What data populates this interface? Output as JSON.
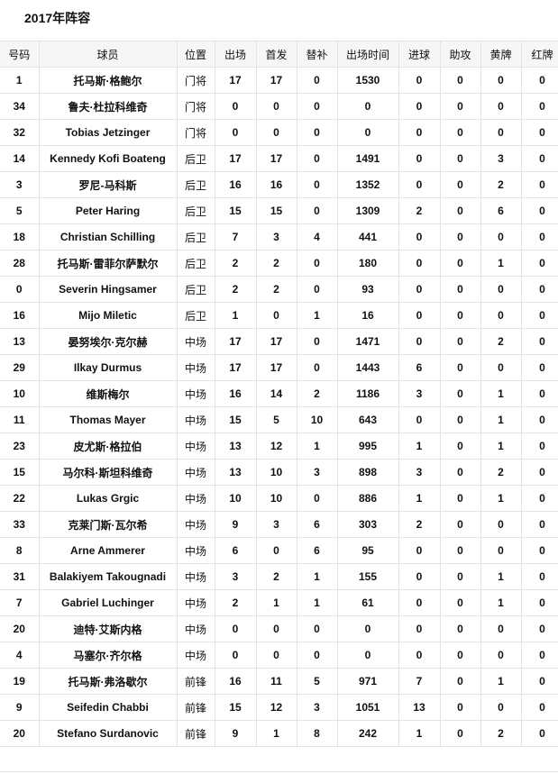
{
  "title": "2017年阵容",
  "headers": [
    "号码",
    "球员",
    "位置",
    "出场",
    "首发",
    "替补",
    "出场时间",
    "进球",
    "助攻",
    "黄牌",
    "红牌"
  ],
  "rows": [
    [
      "1",
      "托马斯·格鲍尔",
      "门将",
      "17",
      "17",
      "0",
      "1530",
      "0",
      "0",
      "0",
      "0"
    ],
    [
      "34",
      "鲁夫·杜拉科维奇",
      "门将",
      "0",
      "0",
      "0",
      "0",
      "0",
      "0",
      "0",
      "0"
    ],
    [
      "32",
      "Tobias Jetzinger",
      "门将",
      "0",
      "0",
      "0",
      "0",
      "0",
      "0",
      "0",
      "0"
    ],
    [
      "14",
      "Kennedy Kofi Boateng",
      "后卫",
      "17",
      "17",
      "0",
      "1491",
      "0",
      "0",
      "3",
      "0"
    ],
    [
      "3",
      "罗尼-马科斯",
      "后卫",
      "16",
      "16",
      "0",
      "1352",
      "0",
      "0",
      "2",
      "0"
    ],
    [
      "5",
      "Peter Haring",
      "后卫",
      "15",
      "15",
      "0",
      "1309",
      "2",
      "0",
      "6",
      "0"
    ],
    [
      "18",
      "Christian Schilling",
      "后卫",
      "7",
      "3",
      "4",
      "441",
      "0",
      "0",
      "0",
      "0"
    ],
    [
      "28",
      "托马斯·雷菲尔萨默尔",
      "后卫",
      "2",
      "2",
      "0",
      "180",
      "0",
      "0",
      "1",
      "0"
    ],
    [
      "0",
      "Severin Hingsamer",
      "后卫",
      "2",
      "2",
      "0",
      "93",
      "0",
      "0",
      "0",
      "0"
    ],
    [
      "16",
      "Mijo Miletic",
      "后卫",
      "1",
      "0",
      "1",
      "16",
      "0",
      "0",
      "0",
      "0"
    ],
    [
      "13",
      "晏努埃尔·克尔赫",
      "中场",
      "17",
      "17",
      "0",
      "1471",
      "0",
      "0",
      "2",
      "0"
    ],
    [
      "29",
      "Ilkay Durmus",
      "中场",
      "17",
      "17",
      "0",
      "1443",
      "6",
      "0",
      "0",
      "0"
    ],
    [
      "10",
      "维斯梅尔",
      "中场",
      "16",
      "14",
      "2",
      "1186",
      "3",
      "0",
      "1",
      "0"
    ],
    [
      "11",
      "Thomas Mayer",
      "中场",
      "15",
      "5",
      "10",
      "643",
      "0",
      "0",
      "1",
      "0"
    ],
    [
      "23",
      "皮尤斯·格拉伯",
      "中场",
      "13",
      "12",
      "1",
      "995",
      "1",
      "0",
      "1",
      "0"
    ],
    [
      "15",
      "马尔科·斯坦科维奇",
      "中场",
      "13",
      "10",
      "3",
      "898",
      "3",
      "0",
      "2",
      "0"
    ],
    [
      "22",
      "Lukas Grgic",
      "中场",
      "10",
      "10",
      "0",
      "886",
      "1",
      "0",
      "1",
      "0"
    ],
    [
      "33",
      "克莱门斯·瓦尔希",
      "中场",
      "9",
      "3",
      "6",
      "303",
      "2",
      "0",
      "0",
      "0"
    ],
    [
      "8",
      "Arne Ammerer",
      "中场",
      "6",
      "0",
      "6",
      "95",
      "0",
      "0",
      "0",
      "0"
    ],
    [
      "31",
      "Balakiyem Takougnadi",
      "中场",
      "3",
      "2",
      "1",
      "155",
      "0",
      "0",
      "1",
      "0"
    ],
    [
      "7",
      "Gabriel Luchinger",
      "中场",
      "2",
      "1",
      "1",
      "61",
      "0",
      "0",
      "1",
      "0"
    ],
    [
      "20",
      "迪特·艾斯内格",
      "中场",
      "0",
      "0",
      "0",
      "0",
      "0",
      "0",
      "0",
      "0"
    ],
    [
      "4",
      "马塞尔·齐尔格",
      "中场",
      "0",
      "0",
      "0",
      "0",
      "0",
      "0",
      "0",
      "0"
    ],
    [
      "19",
      "托马斯·弗洛歇尔",
      "前锋",
      "16",
      "11",
      "5",
      "971",
      "7",
      "0",
      "1",
      "0"
    ],
    [
      "9",
      "Seifedin Chabbi",
      "前锋",
      "15",
      "12",
      "3",
      "1051",
      "13",
      "0",
      "0",
      "0"
    ],
    [
      "20",
      "Stefano Surdanovic",
      "前锋",
      "9",
      "1",
      "8",
      "242",
      "1",
      "0",
      "2",
      "0"
    ]
  ]
}
